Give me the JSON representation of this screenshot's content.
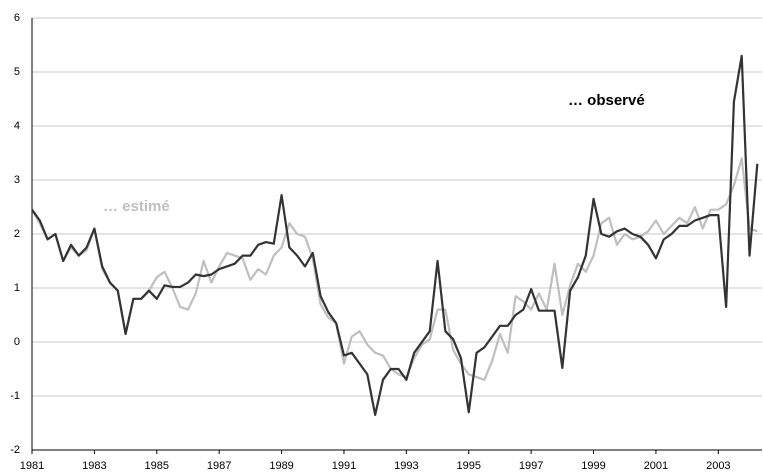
{
  "chart_data": {
    "type": "line",
    "x": [
      1981,
      1981.25,
      1981.5,
      1981.75,
      1982,
      1982.25,
      1982.5,
      1982.75,
      1983,
      1983.25,
      1983.5,
      1983.75,
      1984,
      1984.25,
      1984.5,
      1984.75,
      1985,
      1985.25,
      1985.5,
      1985.75,
      1986,
      1986.25,
      1986.5,
      1986.75,
      1987,
      1987.25,
      1987.5,
      1987.75,
      1988,
      1988.25,
      1988.5,
      1988.75,
      1989,
      1989.25,
      1989.5,
      1989.75,
      1990,
      1990.25,
      1990.5,
      1990.75,
      1991,
      1991.25,
      1991.5,
      1991.75,
      1992,
      1992.25,
      1992.5,
      1992.75,
      1993,
      1993.25,
      1993.5,
      1993.75,
      1994,
      1994.25,
      1994.5,
      1994.75,
      1995,
      1995.25,
      1995.5,
      1995.75,
      1996,
      1996.25,
      1996.5,
      1996.75,
      1997,
      1997.25,
      1997.5,
      1997.75,
      1998,
      1998.25,
      1998.5,
      1998.75,
      1999,
      1999.25,
      1999.5,
      1999.75,
      2000,
      2000.25,
      2000.5,
      2000.75,
      2001,
      2001.25,
      2001.5,
      2001.75,
      2002,
      2002.25,
      2002.5,
      2002.75,
      2003,
      2003.25,
      2003.5,
      2003.75,
      2004,
      2004.25
    ],
    "series": [
      {
        "name": "… observé",
        "color": "#333333",
        "values": [
          2.45,
          2.25,
          1.9,
          2.0,
          1.5,
          1.8,
          1.6,
          1.75,
          2.1,
          1.4,
          1.1,
          0.95,
          0.15,
          0.8,
          0.8,
          0.95,
          0.8,
          1.05,
          1.02,
          1.02,
          1.1,
          1.25,
          1.22,
          1.25,
          1.35,
          1.4,
          1.45,
          1.6,
          1.6,
          1.8,
          1.85,
          1.82,
          2.72,
          1.75,
          1.6,
          1.4,
          1.65,
          0.85,
          0.55,
          0.35,
          -0.25,
          -0.2,
          -0.4,
          -0.6,
          -1.35,
          -0.7,
          -0.5,
          -0.5,
          -0.7,
          -0.2,
          0.0,
          0.2,
          1.5,
          0.2,
          0.05,
          -0.3,
          -1.3,
          -0.2,
          -0.1,
          0.1,
          0.3,
          0.3,
          0.5,
          0.6,
          0.98,
          0.58,
          0.58,
          0.58,
          -0.48,
          0.95,
          1.2,
          1.6,
          2.65,
          2.0,
          1.95,
          2.05,
          2.1,
          2.0,
          1.95,
          1.8,
          1.55,
          1.9,
          2.0,
          2.15,
          2.15,
          2.25,
          2.3,
          2.35,
          2.35,
          0.65,
          4.45,
          5.3,
          1.6,
          3.3
        ]
      },
      {
        "name": "… estimé",
        "color": "#bfbfbf",
        "values": [
          2.45,
          2.2,
          1.9,
          2.0,
          1.5,
          1.75,
          1.6,
          1.7,
          2.1,
          1.35,
          1.1,
          0.95,
          0.15,
          0.8,
          0.8,
          0.95,
          1.2,
          1.3,
          1.0,
          0.65,
          0.6,
          0.9,
          1.5,
          1.1,
          1.4,
          1.65,
          1.6,
          1.55,
          1.15,
          1.35,
          1.25,
          1.6,
          1.75,
          2.2,
          2.0,
          1.95,
          1.55,
          0.7,
          0.45,
          0.35,
          -0.4,
          0.1,
          0.2,
          -0.05,
          -0.2,
          -0.25,
          -0.5,
          -0.6,
          -0.65,
          -0.3,
          -0.05,
          0.05,
          0.6,
          0.6,
          -0.15,
          -0.4,
          -0.6,
          -0.65,
          -0.7,
          -0.35,
          0.15,
          -0.2,
          0.85,
          0.75,
          0.6,
          0.9,
          0.6,
          1.45,
          0.5,
          1.05,
          1.45,
          1.3,
          1.6,
          2.2,
          2.3,
          1.8,
          2.0,
          1.9,
          1.95,
          2.05,
          2.25,
          2.0,
          2.15,
          2.3,
          2.2,
          2.5,
          2.1,
          2.45,
          2.45,
          2.55,
          2.9,
          3.4,
          2.1,
          2.05
        ]
      }
    ],
    "xlim": [
      1981,
      2004.4
    ],
    "xticks": [
      1981,
      1983,
      1985,
      1987,
      1989,
      1991,
      1993,
      1995,
      1997,
      1999,
      2001,
      2003
    ],
    "ylim": [
      -2,
      6
    ],
    "yticks": [
      -2,
      -1,
      0,
      1,
      2,
      3,
      4,
      5,
      6
    ],
    "grid": true
  }
}
